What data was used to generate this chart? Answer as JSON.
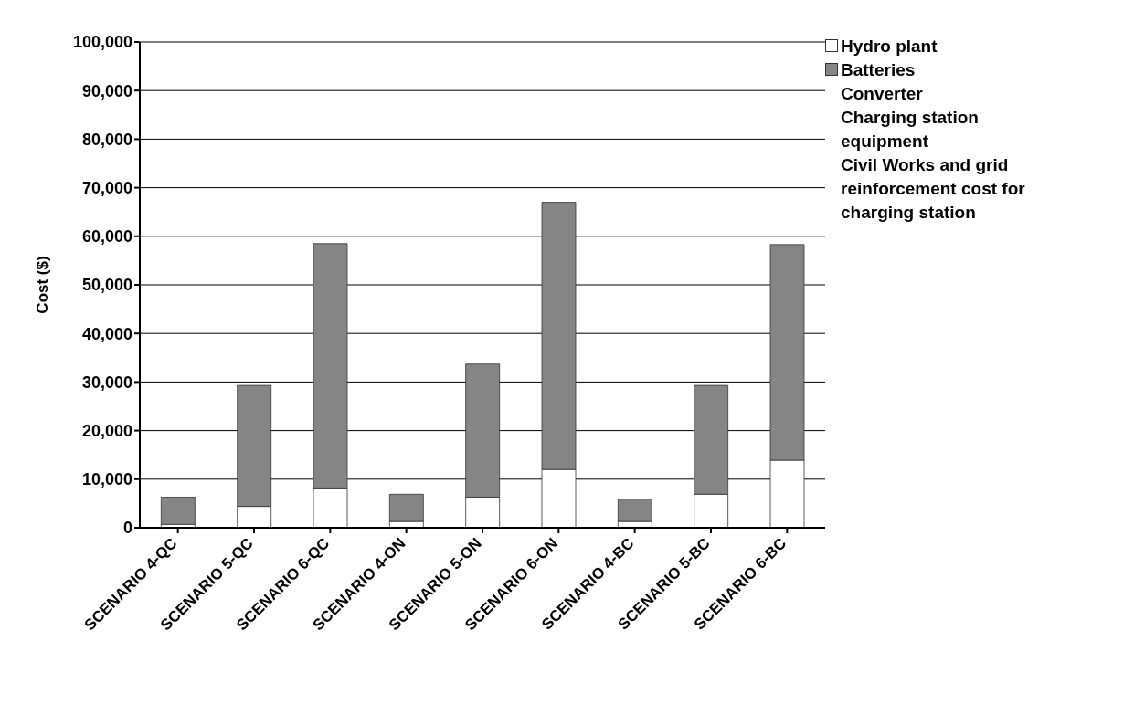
{
  "chart_data": {
    "type": "bar",
    "stacked": true,
    "ylabel": "Cost ($)",
    "categories": [
      "SCENARIO 4-QC",
      "SCENARIO 5-QC",
      "SCENARIO 6-QC",
      "SCENARIO 4-ON",
      "SCENARIO 5-ON",
      "SCENARIO 6-ON",
      "SCENARIO 4-BC",
      "SCENARIO 5-BC",
      "SCENARIO 6-BC"
    ],
    "series": [
      {
        "name": "Hydro plant",
        "color": "#ffffff",
        "values": [
          700,
          4400,
          8200,
          1300,
          6300,
          12000,
          1300,
          6900,
          13900
        ]
      },
      {
        "name": "Batteries",
        "color": "#858585",
        "values": [
          5600,
          24900,
          50300,
          5600,
          27400,
          55000,
          4600,
          22400,
          44400
        ]
      },
      {
        "name": "Converter",
        "values": [
          0,
          0,
          0,
          0,
          0,
          0,
          0,
          0,
          0
        ]
      },
      {
        "name": "Charging station equipment",
        "values": [
          0,
          0,
          0,
          0,
          0,
          0,
          0,
          0,
          0
        ]
      },
      {
        "name": "Civil Works and grid reinforcement cost for charging station",
        "values": [
          0,
          0,
          0,
          0,
          0,
          0,
          0,
          0,
          0
        ]
      }
    ],
    "ylim": [
      0,
      100000
    ],
    "yticks": [
      0,
      {
        "value": 10000,
        "label": "10,000"
      },
      {
        "value": 20000,
        "label": "20,000"
      },
      {
        "value": 30000,
        "label": "30,000"
      },
      {
        "value": 40000,
        "label": "40,000"
      },
      {
        "value": 50000,
        "label": "50,000"
      },
      {
        "value": 60000,
        "label": "60,000"
      },
      {
        "value": 70000,
        "label": "70,000"
      },
      {
        "value": 80000,
        "label": "80,000"
      },
      {
        "value": 90000,
        "label": "90,000"
      },
      {
        "value": 100000,
        "label": "100,000"
      }
    ],
    "grid": "y",
    "legend": "top right"
  }
}
